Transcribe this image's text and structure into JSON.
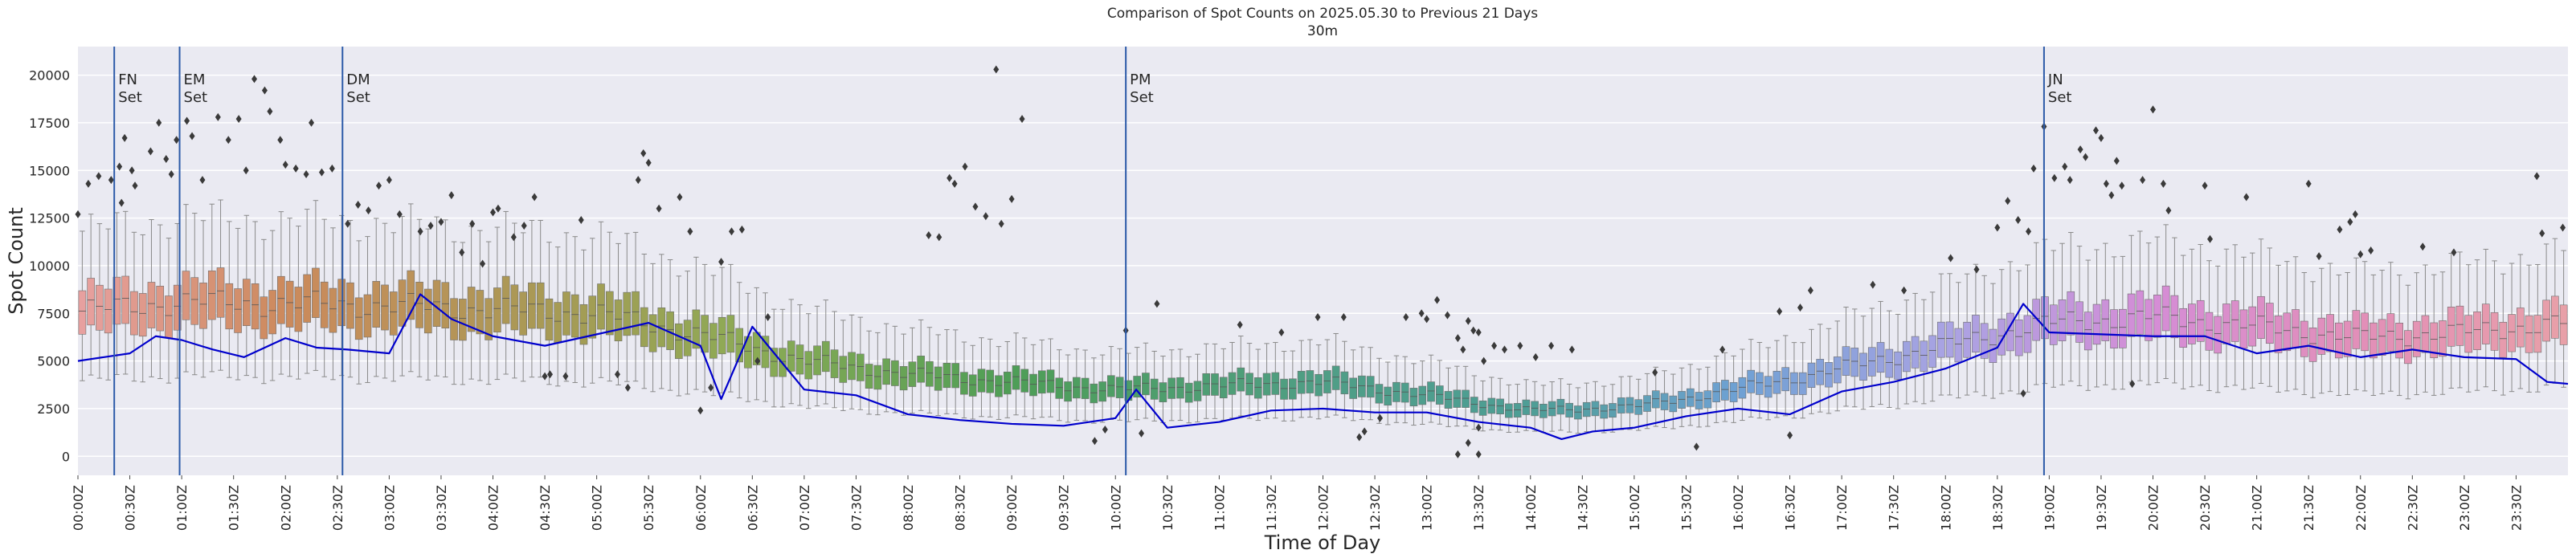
{
  "chart_data": {
    "type": "box",
    "title": "Comparison of Spot Counts on 2025.05.30 to Previous 21 Days",
    "subtitle": "30m",
    "xlabel": "Time of Day",
    "ylabel": "Spot Count",
    "ylim": [
      -1000,
      21500
    ],
    "yticks": [
      0,
      2500,
      5000,
      7500,
      10000,
      12500,
      15000,
      17500,
      20000
    ],
    "xticks": [
      "00:00Z",
      "00:30Z",
      "01:00Z",
      "01:30Z",
      "02:00Z",
      "02:30Z",
      "03:00Z",
      "03:30Z",
      "04:00Z",
      "04:30Z",
      "05:00Z",
      "05:30Z",
      "06:00Z",
      "06:30Z",
      "07:00Z",
      "07:30Z",
      "08:00Z",
      "08:30Z",
      "09:00Z",
      "09:30Z",
      "10:00Z",
      "10:30Z",
      "11:00Z",
      "11:30Z",
      "12:00Z",
      "12:30Z",
      "13:00Z",
      "13:30Z",
      "14:00Z",
      "14:30Z",
      "15:00Z",
      "15:30Z",
      "16:00Z",
      "16:30Z",
      "17:00Z",
      "17:30Z",
      "18:00Z",
      "18:30Z",
      "19:00Z",
      "19:30Z",
      "20:00Z",
      "20:30Z",
      "21:00Z",
      "21:30Z",
      "22:00Z",
      "22:30Z",
      "23:00Z",
      "23:30Z"
    ],
    "x_range_hours": [
      0,
      24
    ],
    "box_median_profile": [
      {
        "hour": 0,
        "median": 7600
      },
      {
        "hour": 1,
        "median": 8100
      },
      {
        "hour": 2,
        "median": 8000
      },
      {
        "hour": 3,
        "median": 7900
      },
      {
        "hour": 4,
        "median": 7700
      },
      {
        "hour": 5,
        "median": 7500
      },
      {
        "hour": 6,
        "median": 6400
      },
      {
        "hour": 7,
        "median": 5000
      },
      {
        "hour": 8,
        "median": 4300
      },
      {
        "hour": 9,
        "median": 3900
      },
      {
        "hour": 10,
        "median": 3500
      },
      {
        "hour": 11,
        "median": 3700
      },
      {
        "hour": 12,
        "median": 3900
      },
      {
        "hour": 13,
        "median": 3200
      },
      {
        "hour": 14,
        "median": 2400
      },
      {
        "hour": 15,
        "median": 2600
      },
      {
        "hour": 16,
        "median": 3500
      },
      {
        "hour": 17,
        "median": 4600
      },
      {
        "hour": 18,
        "median": 5800
      },
      {
        "hour": 19,
        "median": 7000
      },
      {
        "hour": 20,
        "median": 7300
      },
      {
        "hour": 21,
        "median": 6800
      },
      {
        "hour": 22,
        "median": 6200
      },
      {
        "hour": 23,
        "median": 6500
      },
      {
        "hour": 24,
        "median": 7000
      }
    ],
    "current_day_series": {
      "name": "2025.05.30",
      "color": "#0000cc",
      "points": [
        {
          "hour": 0,
          "value": 5000
        },
        {
          "hour": 0.5,
          "value": 5400
        },
        {
          "hour": 0.75,
          "value": 6300
        },
        {
          "hour": 1,
          "value": 6100
        },
        {
          "hour": 1.3,
          "value": 5600
        },
        {
          "hour": 1.6,
          "value": 5200
        },
        {
          "hour": 2,
          "value": 6200
        },
        {
          "hour": 2.3,
          "value": 5700
        },
        {
          "hour": 2.6,
          "value": 5600
        },
        {
          "hour": 3,
          "value": 5400
        },
        {
          "hour": 3.3,
          "value": 8500
        },
        {
          "hour": 3.6,
          "value": 7200
        },
        {
          "hour": 4,
          "value": 6300
        },
        {
          "hour": 4.5,
          "value": 5800
        },
        {
          "hour": 5,
          "value": 6400
        },
        {
          "hour": 5.5,
          "value": 7000
        },
        {
          "hour": 6,
          "value": 5800
        },
        {
          "hour": 6.2,
          "value": 3000
        },
        {
          "hour": 6.5,
          "value": 6800
        },
        {
          "hour": 7,
          "value": 3500
        },
        {
          "hour": 7.5,
          "value": 3200
        },
        {
          "hour": 8,
          "value": 2200
        },
        {
          "hour": 8.5,
          "value": 1900
        },
        {
          "hour": 9,
          "value": 1700
        },
        {
          "hour": 9.5,
          "value": 1600
        },
        {
          "hour": 10,
          "value": 2000
        },
        {
          "hour": 10.2,
          "value": 3500
        },
        {
          "hour": 10.5,
          "value": 1500
        },
        {
          "hour": 11,
          "value": 1800
        },
        {
          "hour": 11.5,
          "value": 2400
        },
        {
          "hour": 12,
          "value": 2500
        },
        {
          "hour": 12.5,
          "value": 2300
        },
        {
          "hour": 13,
          "value": 2300
        },
        {
          "hour": 13.5,
          "value": 1800
        },
        {
          "hour": 14,
          "value": 1500
        },
        {
          "hour": 14.3,
          "value": 900
        },
        {
          "hour": 14.6,
          "value": 1300
        },
        {
          "hour": 15,
          "value": 1500
        },
        {
          "hour": 15.5,
          "value": 2100
        },
        {
          "hour": 16,
          "value": 2500
        },
        {
          "hour": 16.5,
          "value": 2200
        },
        {
          "hour": 17,
          "value": 3400
        },
        {
          "hour": 17.5,
          "value": 3900
        },
        {
          "hour": 18,
          "value": 4600
        },
        {
          "hour": 18.5,
          "value": 5700
        },
        {
          "hour": 18.75,
          "value": 8000
        },
        {
          "hour": 19,
          "value": 6500
        },
        {
          "hour": 19.5,
          "value": 6400
        },
        {
          "hour": 20,
          "value": 6300
        },
        {
          "hour": 20.5,
          "value": 6300
        },
        {
          "hour": 21,
          "value": 5400
        },
        {
          "hour": 21.5,
          "value": 5800
        },
        {
          "hour": 22,
          "value": 5200
        },
        {
          "hour": 22.5,
          "value": 5600
        },
        {
          "hour": 23,
          "value": 5200
        },
        {
          "hour": 23.5,
          "value": 5100
        },
        {
          "hour": 23.8,
          "value": 3900
        },
        {
          "hour": 24,
          "value": 3800
        }
      ]
    },
    "vlines": [
      {
        "hour": 0.35,
        "label1": "FN",
        "label2": "Set"
      },
      {
        "hour": 0.98,
        "label1": "EM",
        "label2": "Set"
      },
      {
        "hour": 2.55,
        "label1": "DM",
        "label2": "Set"
      },
      {
        "hour": 10.1,
        "label1": "PM",
        "label2": "Set"
      },
      {
        "hour": 18.95,
        "label1": "JN",
        "label2": "Set"
      }
    ],
    "palette_stops": [
      {
        "hour": 0,
        "color": "#e8a0a0"
      },
      {
        "hour": 2,
        "color": "#cc8a5c"
      },
      {
        "hour": 4.5,
        "color": "#a89a55"
      },
      {
        "hour": 6.5,
        "color": "#8cab55"
      },
      {
        "hour": 9,
        "color": "#4e9e56"
      },
      {
        "hour": 12,
        "color": "#4f9e86"
      },
      {
        "hour": 14,
        "color": "#4e9e96"
      },
      {
        "hour": 16,
        "color": "#6fa1d4"
      },
      {
        "hour": 18,
        "color": "#a9a3e3"
      },
      {
        "hour": 20,
        "color": "#d58dd6"
      },
      {
        "hour": 22,
        "color": "#e28fb8"
      },
      {
        "hour": 24,
        "color": "#e8a0a8"
      }
    ],
    "outlier_points": [
      {
        "hour": 0.0,
        "value": 12700
      },
      {
        "hour": 0.1,
        "value": 14300
      },
      {
        "hour": 0.2,
        "value": 14700
      },
      {
        "hour": 0.32,
        "value": 14500
      },
      {
        "hour": 0.4,
        "value": 15200
      },
      {
        "hour": 0.42,
        "value": 13300
      },
      {
        "hour": 0.45,
        "value": 16700
      },
      {
        "hour": 0.52,
        "value": 15000
      },
      {
        "hour": 0.55,
        "value": 14200
      },
      {
        "hour": 0.7,
        "value": 16000
      },
      {
        "hour": 0.78,
        "value": 17500
      },
      {
        "hour": 0.85,
        "value": 15600
      },
      {
        "hour": 0.9,
        "value": 14800
      },
      {
        "hour": 0.95,
        "value": 16600
      },
      {
        "hour": 1.05,
        "value": 17600
      },
      {
        "hour": 1.1,
        "value": 16800
      },
      {
        "hour": 1.2,
        "value": 14500
      },
      {
        "hour": 1.35,
        "value": 17800
      },
      {
        "hour": 1.45,
        "value": 16600
      },
      {
        "hour": 1.55,
        "value": 17700
      },
      {
        "hour": 1.62,
        "value": 15000
      },
      {
        "hour": 1.7,
        "value": 19800
      },
      {
        "hour": 1.8,
        "value": 19200
      },
      {
        "hour": 1.85,
        "value": 18100
      },
      {
        "hour": 1.95,
        "value": 16600
      },
      {
        "hour": 2.0,
        "value": 15300
      },
      {
        "hour": 2.1,
        "value": 15100
      },
      {
        "hour": 2.2,
        "value": 14800
      },
      {
        "hour": 2.25,
        "value": 17500
      },
      {
        "hour": 2.35,
        "value": 14900
      },
      {
        "hour": 2.45,
        "value": 15100
      },
      {
        "hour": 2.6,
        "value": 12200
      },
      {
        "hour": 2.7,
        "value": 13200
      },
      {
        "hour": 2.8,
        "value": 12900
      },
      {
        "hour": 2.9,
        "value": 14200
      },
      {
        "hour": 3.0,
        "value": 14500
      },
      {
        "hour": 3.1,
        "value": 12700
      },
      {
        "hour": 3.3,
        "value": 11800
      },
      {
        "hour": 3.4,
        "value": 12100
      },
      {
        "hour": 3.5,
        "value": 12300
      },
      {
        "hour": 3.6,
        "value": 13700
      },
      {
        "hour": 3.7,
        "value": 10700
      },
      {
        "hour": 3.8,
        "value": 12200
      },
      {
        "hour": 3.9,
        "value": 10100
      },
      {
        "hour": 4.0,
        "value": 12800
      },
      {
        "hour": 4.05,
        "value": 13000
      },
      {
        "hour": 4.2,
        "value": 11500
      },
      {
        "hour": 4.3,
        "value": 12100
      },
      {
        "hour": 4.4,
        "value": 13600
      },
      {
        "hour": 4.5,
        "value": 4200
      },
      {
        "hour": 4.55,
        "value": 4300
      },
      {
        "hour": 4.7,
        "value": 4200
      },
      {
        "hour": 4.85,
        "value": 12400
      },
      {
        "hour": 5.2,
        "value": 4300
      },
      {
        "hour": 5.3,
        "value": 3600
      },
      {
        "hour": 5.4,
        "value": 14500
      },
      {
        "hour": 5.45,
        "value": 15900
      },
      {
        "hour": 5.5,
        "value": 15400
      },
      {
        "hour": 5.6,
        "value": 13000
      },
      {
        "hour": 5.8,
        "value": 13600
      },
      {
        "hour": 5.9,
        "value": 11800
      },
      {
        "hour": 6.0,
        "value": 2400
      },
      {
        "hour": 6.1,
        "value": 3600
      },
      {
        "hour": 6.2,
        "value": 10200
      },
      {
        "hour": 6.3,
        "value": 11800
      },
      {
        "hour": 6.4,
        "value": 11900
      },
      {
        "hour": 6.55,
        "value": 5000
      },
      {
        "hour": 6.65,
        "value": 7300
      },
      {
        "hour": 8.2,
        "value": 11600
      },
      {
        "hour": 8.3,
        "value": 11500
      },
      {
        "hour": 8.4,
        "value": 14600
      },
      {
        "hour": 8.45,
        "value": 14300
      },
      {
        "hour": 8.55,
        "value": 15200
      },
      {
        "hour": 8.65,
        "value": 13100
      },
      {
        "hour": 8.75,
        "value": 12600
      },
      {
        "hour": 8.85,
        "value": 20300
      },
      {
        "hour": 8.9,
        "value": 12200
      },
      {
        "hour": 9.0,
        "value": 13500
      },
      {
        "hour": 9.1,
        "value": 17700
      },
      {
        "hour": 9.8,
        "value": 800
      },
      {
        "hour": 9.9,
        "value": 1400
      },
      {
        "hour": 10.1,
        "value": 6600
      },
      {
        "hour": 10.25,
        "value": 1200
      },
      {
        "hour": 10.4,
        "value": 8000
      },
      {
        "hour": 11.2,
        "value": 6900
      },
      {
        "hour": 11.6,
        "value": 6500
      },
      {
        "hour": 11.95,
        "value": 7300
      },
      {
        "hour": 12.2,
        "value": 7300
      },
      {
        "hour": 12.35,
        "value": 1000
      },
      {
        "hour": 12.4,
        "value": 1300
      },
      {
        "hour": 12.55,
        "value": 2000
      },
      {
        "hour": 12.8,
        "value": 7300
      },
      {
        "hour": 12.95,
        "value": 7500
      },
      {
        "hour": 13.0,
        "value": 7200
      },
      {
        "hour": 13.1,
        "value": 8200
      },
      {
        "hour": 13.2,
        "value": 7400
      },
      {
        "hour": 13.3,
        "value": 6200
      },
      {
        "hour": 13.35,
        "value": 5600
      },
      {
        "hour": 13.4,
        "value": 7100
      },
      {
        "hour": 13.45,
        "value": 6600
      },
      {
        "hour": 13.5,
        "value": 6500
      },
      {
        "hour": 13.55,
        "value": 5000
      },
      {
        "hour": 13.65,
        "value": 5800
      },
      {
        "hour": 13.75,
        "value": 5600
      },
      {
        "hour": 13.9,
        "value": 5800
      },
      {
        "hour": 14.05,
        "value": 5200
      },
      {
        "hour": 14.2,
        "value": 5800
      },
      {
        "hour": 14.4,
        "value": 5600
      },
      {
        "hour": 13.3,
        "value": 100
      },
      {
        "hour": 13.5,
        "value": 100
      },
      {
        "hour": 13.4,
        "value": 700
      },
      {
        "hour": 13.5,
        "value": 1500
      },
      {
        "hour": 15.2,
        "value": 4400
      },
      {
        "hour": 15.6,
        "value": 500
      },
      {
        "hour": 15.85,
        "value": 5600
      },
      {
        "hour": 16.4,
        "value": 7600
      },
      {
        "hour": 16.6,
        "value": 7800
      },
      {
        "hour": 16.7,
        "value": 8700
      },
      {
        "hour": 16.5,
        "value": 1100
      },
      {
        "hour": 17.3,
        "value": 9000
      },
      {
        "hour": 17.6,
        "value": 8700
      },
      {
        "hour": 18.05,
        "value": 10400
      },
      {
        "hour": 18.3,
        "value": 9800
      },
      {
        "hour": 18.5,
        "value": 12000
      },
      {
        "hour": 18.6,
        "value": 13400
      },
      {
        "hour": 18.7,
        "value": 12400
      },
      {
        "hour": 18.75,
        "value": 3300
      },
      {
        "hour": 18.8,
        "value": 11800
      },
      {
        "hour": 18.85,
        "value": 15100
      },
      {
        "hour": 18.95,
        "value": 17300
      },
      {
        "hour": 19.05,
        "value": 14600
      },
      {
        "hour": 19.15,
        "value": 15200
      },
      {
        "hour": 19.2,
        "value": 14500
      },
      {
        "hour": 19.3,
        "value": 16100
      },
      {
        "hour": 19.35,
        "value": 15700
      },
      {
        "hour": 19.45,
        "value": 17100
      },
      {
        "hour": 19.5,
        "value": 16700
      },
      {
        "hour": 19.55,
        "value": 14300
      },
      {
        "hour": 19.6,
        "value": 13700
      },
      {
        "hour": 19.65,
        "value": 15500
      },
      {
        "hour": 19.7,
        "value": 14200
      },
      {
        "hour": 19.8,
        "value": 3800
      },
      {
        "hour": 19.9,
        "value": 14500
      },
      {
        "hour": 20.0,
        "value": 18200
      },
      {
        "hour": 20.1,
        "value": 14300
      },
      {
        "hour": 20.15,
        "value": 12900
      },
      {
        "hour": 20.5,
        "value": 14200
      },
      {
        "hour": 20.55,
        "value": 11400
      },
      {
        "hour": 20.9,
        "value": 13600
      },
      {
        "hour": 21.5,
        "value": 14300
      },
      {
        "hour": 21.6,
        "value": 10500
      },
      {
        "hour": 21.8,
        "value": 11900
      },
      {
        "hour": 21.9,
        "value": 12300
      },
      {
        "hour": 21.95,
        "value": 12700
      },
      {
        "hour": 22.0,
        "value": 10600
      },
      {
        "hour": 22.1,
        "value": 10800
      },
      {
        "hour": 22.6,
        "value": 11000
      },
      {
        "hour": 22.9,
        "value": 10700
      },
      {
        "hour": 23.7,
        "value": 14700
      },
      {
        "hour": 23.75,
        "value": 11700
      },
      {
        "hour": 23.95,
        "value": 12000
      }
    ]
  }
}
